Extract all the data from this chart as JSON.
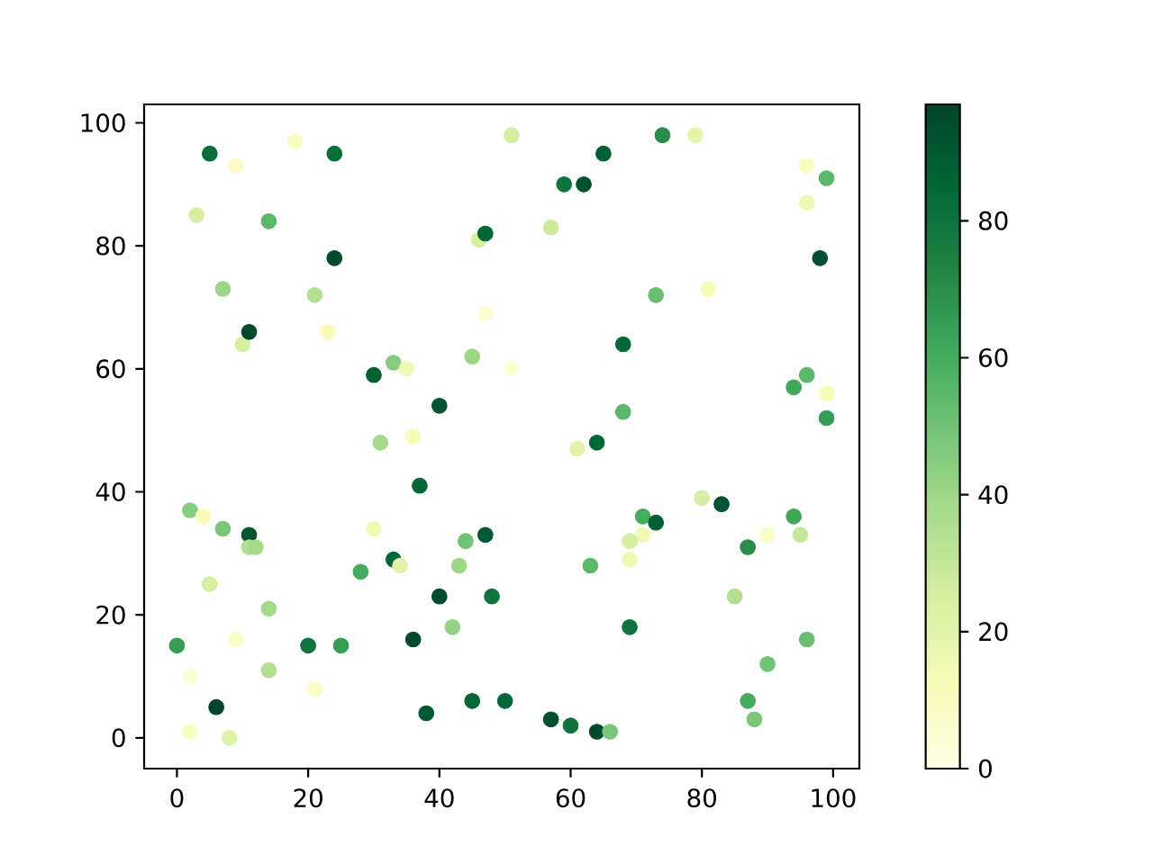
{
  "chart_data": {
    "type": "scatter",
    "marker": "circle",
    "x": [
      5,
      9,
      18,
      24,
      3,
      14,
      46,
      47,
      24,
      7,
      21,
      47,
      10,
      11,
      23,
      51,
      30,
      33,
      35,
      45,
      40,
      31,
      36,
      51,
      74,
      79,
      65,
      59,
      62,
      96,
      99,
      96,
      57,
      98,
      73,
      81,
      68,
      96,
      94,
      99,
      99,
      68,
      37,
      2,
      4,
      7,
      11,
      11,
      12,
      30,
      47,
      44,
      33,
      34,
      28,
      43,
      5,
      40,
      48,
      14,
      42,
      0,
      9,
      20,
      25,
      36,
      2,
      14,
      21,
      6,
      38,
      45,
      50,
      2,
      8,
      61,
      64,
      80,
      83,
      71,
      73,
      71,
      69,
      69,
      63,
      94,
      90,
      95,
      87,
      85,
      69,
      96,
      90,
      87,
      88,
      57,
      60,
      64,
      66
    ],
    "values": [
      95,
      93,
      97,
      95,
      85,
      84,
      81,
      82,
      78,
      73,
      72,
      69,
      64,
      66,
      66,
      60,
      59,
      61,
      60,
      62,
      54,
      48,
      49,
      98,
      98,
      98,
      95,
      90,
      90,
      93,
      91,
      87,
      83,
      78,
      72,
      73,
      64,
      59,
      57,
      56,
      52,
      53,
      41,
      37,
      36,
      34,
      33,
      31,
      31,
      34,
      33,
      32,
      29,
      28,
      27,
      28,
      25,
      23,
      23,
      21,
      18,
      15,
      16,
      15,
      15,
      16,
      10,
      11,
      8,
      5,
      4,
      6,
      6,
      1,
      0,
      47,
      48,
      39,
      38,
      36,
      35,
      33,
      32,
      29,
      28,
      36,
      33,
      33,
      31,
      23,
      18,
      16,
      12,
      6,
      3,
      3,
      2,
      1,
      1
    ],
    "cvalues": [
      82,
      8,
      10,
      82,
      25,
      55,
      25,
      85,
      95,
      40,
      35,
      5,
      25,
      95,
      12,
      5,
      88,
      45,
      15,
      40,
      92,
      38,
      12,
      25,
      70,
      20,
      88,
      80,
      93,
      10,
      55,
      15,
      28,
      93,
      52,
      12,
      85,
      55,
      62,
      12,
      65,
      55,
      85,
      45,
      12,
      48,
      92,
      35,
      38,
      15,
      90,
      50,
      85,
      22,
      60,
      40,
      25,
      95,
      80,
      38,
      42,
      65,
      8,
      80,
      65,
      95,
      5,
      35,
      8,
      97,
      90,
      85,
      85,
      10,
      22,
      20,
      85,
      25,
      92,
      60,
      88,
      15,
      25,
      15,
      55,
      62,
      8,
      30,
      70,
      35,
      80,
      52,
      50,
      60,
      48,
      93,
      80,
      95,
      48
    ],
    "xlim": [
      -5,
      104
    ],
    "ylim": [
      -5,
      103
    ],
    "xticks": [
      0,
      20,
      40,
      60,
      80,
      100
    ],
    "yticks": [
      0,
      20,
      40,
      60,
      80,
      100
    ],
    "clim": [
      0,
      97
    ],
    "cticks": [
      0,
      20,
      40,
      60,
      80
    ]
  }
}
